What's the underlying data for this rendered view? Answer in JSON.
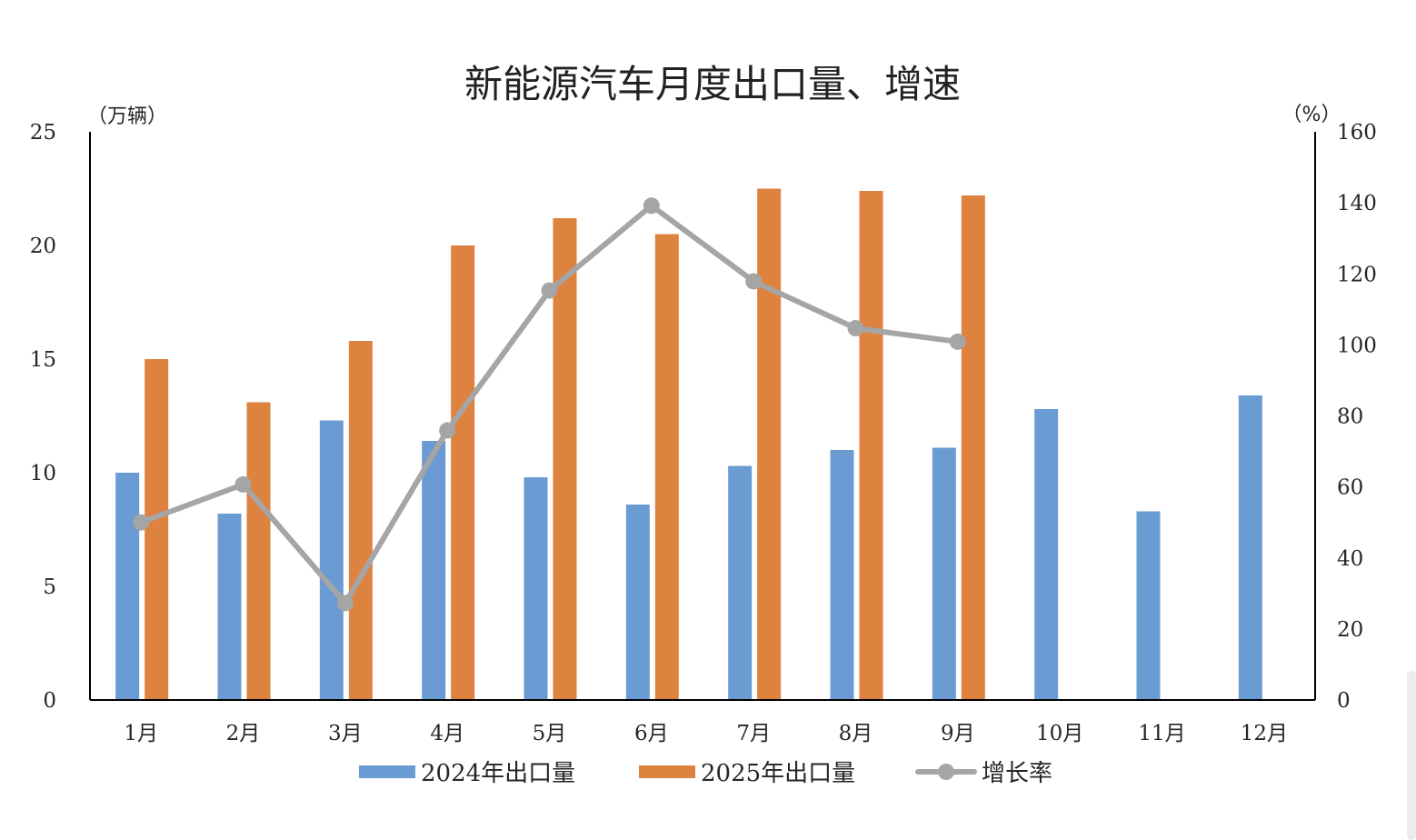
{
  "chart_data": {
    "type": "bar",
    "title": "新能源汽车月度出口量、增速",
    "y_left_unit": "（万辆）",
    "y_right_unit": "（%）",
    "categories": [
      "1月",
      "2月",
      "3月",
      "4月",
      "5月",
      "6月",
      "7月",
      "8月",
      "9月",
      "10月",
      "11月",
      "12月"
    ],
    "ylim_left": [
      0,
      25
    ],
    "yticks_left": [
      0,
      5,
      10,
      15,
      20,
      25
    ],
    "ylim_right": [
      0,
      160
    ],
    "yticks_right": [
      0,
      20,
      40,
      60,
      80,
      100,
      120,
      140,
      160
    ],
    "grid": false,
    "legend_position": "bottom",
    "series": [
      {
        "name": "2024年出口量",
        "kind": "bar",
        "axis": "left",
        "color": "#6a9bd2",
        "values": [
          10.0,
          8.2,
          12.3,
          11.4,
          9.8,
          8.6,
          10.3,
          11.0,
          11.1,
          12.8,
          8.3,
          13.4
        ]
      },
      {
        "name": "2025年出口量",
        "kind": "bar",
        "axis": "left",
        "color": "#de8240",
        "values": [
          15.0,
          13.1,
          15.8,
          20.0,
          21.2,
          20.5,
          22.5,
          22.4,
          22.2,
          null,
          null,
          null
        ]
      },
      {
        "name": "增长率",
        "kind": "line",
        "axis": "right",
        "color": "#a5a5a5",
        "values": [
          50.0,
          60.7,
          27.3,
          75.9,
          115.3,
          139.2,
          117.9,
          104.7,
          100.9,
          null,
          null,
          null
        ]
      }
    ]
  }
}
